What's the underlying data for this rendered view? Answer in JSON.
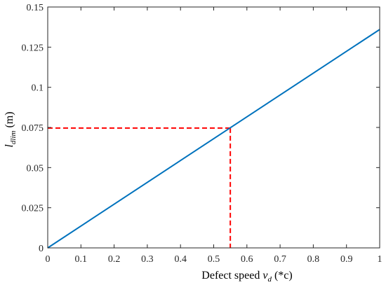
{
  "chart_data": {
    "type": "line",
    "xlabel": {
      "pre": "Defect speed ",
      "var": "v",
      "sub": "d",
      "post": " (*c)"
    },
    "ylabel": {
      "var": "l",
      "sub": "dlim",
      "post": " (m)"
    },
    "xlim": [
      0,
      1
    ],
    "ylim": [
      0,
      0.15
    ],
    "xticks": [
      "0",
      "0.1",
      "0.2",
      "0.3",
      "0.4",
      "0.5",
      "0.6",
      "0.7",
      "0.8",
      "0.9",
      "1"
    ],
    "yticks": [
      "0",
      "0.025",
      "0.05",
      "0.075",
      "0.1",
      "0.125",
      "0.15"
    ],
    "grid": false,
    "series": [
      {
        "color": "#0072BD",
        "style": "solid",
        "x": [
          0,
          1
        ],
        "y": [
          0,
          0.136
        ]
      }
    ],
    "annotations": [
      {
        "type": "dashed-guide",
        "color": "#FF0000",
        "x": 0.55,
        "y": 0.0746
      }
    ]
  }
}
